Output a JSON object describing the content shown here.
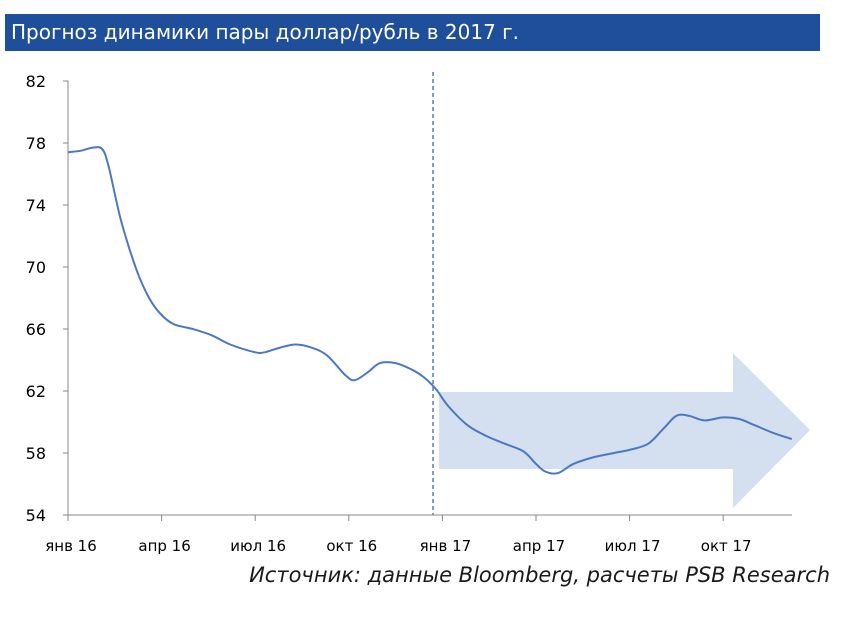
{
  "chart_data": {
    "type": "line",
    "title": "Прогноз динамики пары доллар/рубль в 2017 г.",
    "xlabel": "",
    "ylabel": "",
    "ylim": [
      54,
      82
    ],
    "yticks": [
      54,
      58,
      62,
      66,
      70,
      74,
      78,
      82
    ],
    "xticks": [
      {
        "month": 0,
        "label": "янв 16"
      },
      {
        "month": 3,
        "label": "апр 16"
      },
      {
        "month": 6,
        "label": "июл 16"
      },
      {
        "month": 9,
        "label": "окт 16"
      },
      {
        "month": 12,
        "label": "янв 17"
      },
      {
        "month": 15,
        "label": "апр 17"
      },
      {
        "month": 18,
        "label": "июл 17"
      },
      {
        "month": 21,
        "label": "окт 17"
      }
    ],
    "forecast_start_month": 11.7,
    "grid": false,
    "series": [
      {
        "color": "#4a78c2",
        "points": [
          [
            0,
            77.4
          ],
          [
            0.4,
            77.5
          ],
          [
            0.8,
            77.7
          ],
          [
            1.1,
            77.6
          ],
          [
            1.3,
            76.5
          ],
          [
            1.7,
            73.0
          ],
          [
            2.2,
            69.8
          ],
          [
            2.6,
            68.0
          ],
          [
            3.0,
            66.9
          ],
          [
            3.4,
            66.3
          ],
          [
            4.0,
            66.0
          ],
          [
            4.6,
            65.6
          ],
          [
            5.2,
            65.0
          ],
          [
            6.0,
            64.5
          ],
          [
            6.3,
            64.5
          ],
          [
            6.8,
            64.8
          ],
          [
            7.3,
            65.0
          ],
          [
            7.8,
            64.8
          ],
          [
            8.3,
            64.3
          ],
          [
            8.9,
            63.0
          ],
          [
            9.2,
            62.7
          ],
          [
            9.6,
            63.2
          ],
          [
            10.0,
            63.8
          ],
          [
            10.5,
            63.8
          ],
          [
            11.0,
            63.4
          ],
          [
            11.4,
            62.9
          ],
          [
            11.8,
            62.1
          ],
          [
            12.2,
            61.0
          ],
          [
            12.8,
            59.8
          ],
          [
            13.4,
            59.1
          ],
          [
            14.0,
            58.6
          ],
          [
            14.6,
            58.1
          ],
          [
            15.0,
            57.3
          ],
          [
            15.3,
            56.8
          ],
          [
            15.7,
            56.7
          ],
          [
            16.2,
            57.3
          ],
          [
            16.8,
            57.7
          ],
          [
            17.5,
            58.0
          ],
          [
            18.0,
            58.2
          ],
          [
            18.6,
            58.6
          ],
          [
            19.1,
            59.6
          ],
          [
            19.5,
            60.4
          ],
          [
            19.9,
            60.4
          ],
          [
            20.4,
            60.1
          ],
          [
            21.0,
            60.3
          ],
          [
            21.5,
            60.2
          ],
          [
            22.0,
            59.8
          ],
          [
            22.6,
            59.3
          ],
          [
            23.2,
            58.9
          ]
        ]
      }
    ]
  },
  "header": {
    "title": "Прогноз динамики пары доллар/рубль в 2017 г."
  },
  "footer": {
    "source": "Источник: данные Bloomberg, расчеты PSB Research"
  },
  "colors": {
    "title_bar": "#1f4e9a",
    "line": "#4a78c2",
    "forecast_arrow": "#d4dff0",
    "forecast_divider": "#3b66b5"
  }
}
